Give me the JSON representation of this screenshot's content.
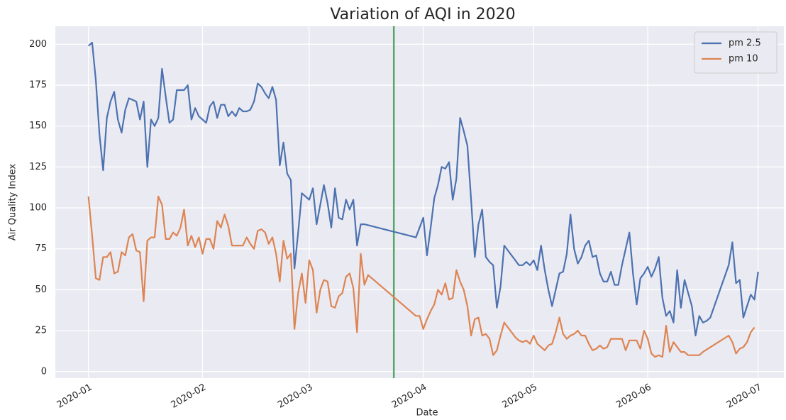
{
  "chart_data": {
    "type": "line",
    "title": "Variation of AQI in 2020",
    "xlabel": "Date",
    "ylabel": "Air Quality Index",
    "xlim": [
      -9,
      189
    ],
    "ylim": [
      -4,
      211
    ],
    "xticks": [
      {
        "value": 0,
        "label": "2020-01"
      },
      {
        "value": 31,
        "label": "2020-02"
      },
      {
        "value": 60,
        "label": "2020-03"
      },
      {
        "value": 91,
        "label": "2020-04"
      },
      {
        "value": 121,
        "label": "2020-05"
      },
      {
        "value": 152,
        "label": "2020-06"
      },
      {
        "value": 182,
        "label": "2020-07"
      }
    ],
    "yticks": [
      0,
      25,
      50,
      75,
      100,
      125,
      150,
      175,
      200
    ],
    "grid": true,
    "legend": "upper right",
    "vlines": [
      {
        "x": 83,
        "color": "#55a868"
      }
    ],
    "series": [
      {
        "name": "pm 2.5",
        "color": "#4c72b0",
        "x": [
          0,
          1,
          2,
          3,
          4,
          5,
          6,
          7,
          8,
          9,
          10,
          11,
          12,
          13,
          14,
          15,
          16,
          17,
          18,
          19,
          20,
          21,
          22,
          23,
          24,
          25,
          26,
          27,
          28,
          29,
          30,
          31,
          32,
          33,
          34,
          35,
          36,
          37,
          38,
          39,
          40,
          41,
          42,
          43,
          44,
          45,
          46,
          47,
          48,
          49,
          50,
          51,
          52,
          53,
          54,
          55,
          56,
          57,
          58,
          59,
          60,
          61,
          62,
          63,
          64,
          65,
          66,
          67,
          68,
          69,
          70,
          71,
          72,
          73,
          74,
          75,
          89,
          90,
          91,
          92,
          93,
          94,
          95,
          96,
          97,
          98,
          99,
          100,
          101,
          102,
          103,
          104,
          105,
          106,
          107,
          108,
          109,
          110,
          111,
          112,
          113,
          114,
          115,
          116,
          117,
          118,
          119,
          120,
          121,
          122,
          123,
          124,
          125,
          126,
          127,
          128,
          129,
          130,
          131,
          132,
          133,
          134,
          135,
          136,
          137,
          138,
          139,
          140,
          141,
          142,
          143,
          144,
          145,
          146,
          147,
          148,
          149,
          150,
          151,
          152,
          153,
          154,
          155,
          156,
          157,
          158,
          159,
          160,
          161,
          162,
          163,
          164,
          165,
          166,
          167,
          168,
          169,
          174,
          175,
          176,
          177,
          178,
          179,
          180,
          181,
          182
        ],
        "values": [
          199,
          201,
          178,
          145,
          123,
          155,
          165,
          171,
          154,
          146,
          160,
          167,
          166,
          165,
          154,
          165,
          125,
          154,
          150,
          155,
          185,
          168,
          152,
          154,
          172,
          172,
          172,
          175,
          154,
          161,
          156,
          154,
          152,
          162,
          165,
          155,
          163,
          163,
          156,
          159,
          156,
          161,
          159,
          159,
          160,
          165,
          176,
          174,
          170,
          167,
          174,
          166,
          126,
          140,
          121,
          117,
          63,
          85,
          109,
          107,
          105,
          112,
          90,
          102,
          114,
          103,
          88,
          112,
          94,
          93,
          105,
          99,
          105,
          77,
          90,
          90,
          82,
          88,
          94,
          71,
          88,
          106,
          114,
          125,
          124,
          128,
          105,
          118,
          155,
          147,
          138,
          105,
          70,
          90,
          99,
          70,
          67,
          65,
          39,
          52,
          77,
          74,
          71,
          68,
          65,
          65,
          67,
          65,
          68,
          62,
          77,
          62,
          50,
          40,
          50,
          60,
          61,
          72,
          96,
          75,
          66,
          70,
          77,
          80,
          70,
          71,
          60,
          55,
          55,
          61,
          53,
          53,
          65,
          75,
          85,
          60,
          41,
          57,
          60,
          64,
          58,
          63,
          70,
          45,
          34,
          37,
          30,
          62,
          39,
          56,
          48,
          40,
          22,
          34,
          30,
          31,
          33,
          65,
          79,
          54,
          56,
          33,
          40,
          47,
          44,
          61
        ]
      },
      {
        "name": "pm 10",
        "color": "#dd8452",
        "x": [
          0,
          1,
          2,
          3,
          4,
          5,
          6,
          7,
          8,
          9,
          10,
          11,
          12,
          13,
          14,
          15,
          16,
          17,
          18,
          19,
          20,
          21,
          22,
          23,
          24,
          25,
          26,
          27,
          28,
          29,
          30,
          31,
          32,
          33,
          34,
          35,
          36,
          37,
          38,
          39,
          40,
          41,
          42,
          43,
          44,
          45,
          46,
          47,
          48,
          49,
          50,
          51,
          52,
          53,
          54,
          55,
          56,
          57,
          58,
          59,
          60,
          61,
          62,
          63,
          64,
          65,
          66,
          67,
          68,
          69,
          70,
          71,
          72,
          73,
          74,
          75,
          76,
          89,
          90,
          91,
          92,
          93,
          94,
          95,
          96,
          97,
          98,
          99,
          100,
          101,
          102,
          103,
          104,
          105,
          106,
          107,
          108,
          109,
          110,
          111,
          112,
          113,
          114,
          115,
          116,
          117,
          118,
          119,
          120,
          121,
          122,
          123,
          124,
          125,
          126,
          127,
          128,
          129,
          130,
          131,
          132,
          133,
          134,
          135,
          136,
          137,
          138,
          139,
          140,
          141,
          142,
          143,
          144,
          145,
          146,
          147,
          148,
          149,
          150,
          151,
          152,
          153,
          154,
          155,
          156,
          157,
          158,
          159,
          160,
          161,
          162,
          163,
          164,
          165,
          166,
          167,
          174,
          175,
          176,
          177,
          178,
          179,
          180,
          181
        ],
        "values": [
          107,
          83,
          57,
          56,
          70,
          70,
          73,
          60,
          61,
          73,
          71,
          82,
          84,
          74,
          73,
          43,
          80,
          82,
          82,
          107,
          102,
          81,
          81,
          85,
          83,
          88,
          99,
          77,
          83,
          76,
          82,
          72,
          81,
          81,
          75,
          92,
          88,
          96,
          89,
          77,
          77,
          77,
          77,
          82,
          78,
          75,
          86,
          87,
          85,
          78,
          82,
          72,
          55,
          80,
          69,
          72,
          26,
          48,
          60,
          42,
          68,
          62,
          36,
          50,
          56,
          55,
          40,
          39,
          46,
          48,
          58,
          60,
          51,
          24,
          72,
          53,
          59,
          34,
          34,
          26,
          32,
          37,
          41,
          50,
          47,
          54,
          44,
          45,
          62,
          55,
          50,
          40,
          22,
          32,
          33,
          22,
          23,
          20,
          10,
          13,
          22,
          30,
          27,
          24,
          21,
          19,
          18,
          19,
          17,
          22,
          17,
          15,
          13,
          16,
          17,
          24,
          33,
          23,
          20,
          22,
          23,
          25,
          22,
          22,
          17,
          13,
          14,
          16,
          14,
          15,
          20,
          20,
          20,
          20,
          13,
          19,
          19,
          19,
          14,
          25,
          20,
          11,
          9,
          10,
          9,
          28,
          12,
          18,
          15,
          12,
          12,
          10,
          10,
          10,
          10,
          12,
          22,
          18,
          11,
          14,
          15,
          18,
          24,
          27
        ]
      }
    ]
  }
}
